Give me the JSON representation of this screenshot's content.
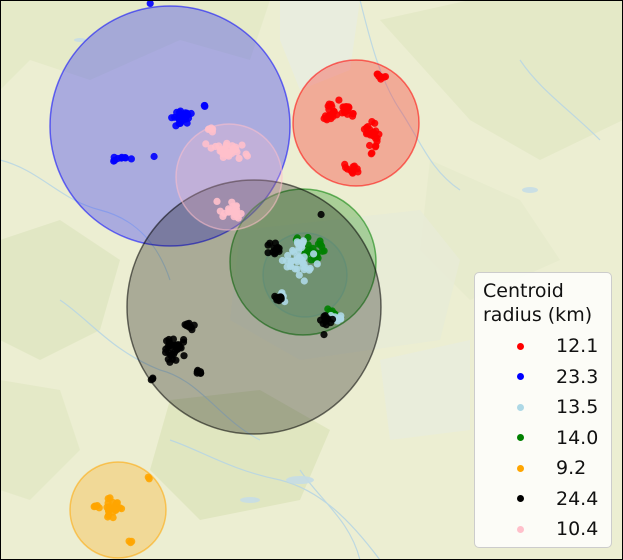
{
  "chart_data": {
    "type": "scatter",
    "legend": {
      "title": "Centroid\nradius (km)",
      "placement": "lower-right"
    },
    "series": [
      {
        "name": "12.1",
        "color": "#ff0000"
      },
      {
        "name": "23.3",
        "color": "#0000ff"
      },
      {
        "name": "13.5",
        "color": "#add8e6"
      },
      {
        "name": "14.0",
        "color": "#008000"
      },
      {
        "name": "9.2",
        "color": "#ffa500"
      },
      {
        "name": "24.4",
        "color": "#000000"
      },
      {
        "name": "10.4",
        "color": "#ffc0cb"
      }
    ]
  }
}
